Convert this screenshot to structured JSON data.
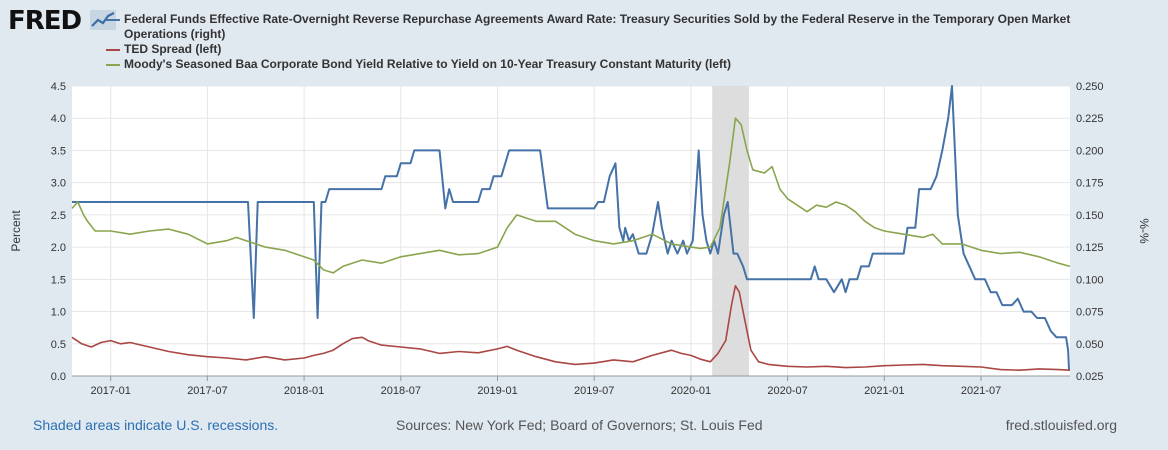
{
  "header": {
    "logo_text": "FRED"
  },
  "footer": {
    "recession_note": "Shaded areas indicate U.S. recessions.",
    "sources": "Sources: New York Fed; Board of Governors; St. Louis Fed",
    "site": "fred.stlouisfed.org"
  },
  "colors": {
    "series_blue": "#4572a7",
    "series_red": "#aa4643",
    "series_green": "#89a54e",
    "recession": "#d9d9d9",
    "grid": "#e6e6e6",
    "frame": "#e1e9f0"
  },
  "chart_data": {
    "type": "line",
    "title": "",
    "ylabel_left": "Percent",
    "ylabel_right": "%-%",
    "ylim_left": [
      0.0,
      4.5
    ],
    "ylim_right": [
      0.025,
      0.25
    ],
    "yticks_left": [
      "0.0",
      "0.5",
      "1.0",
      "1.5",
      "2.0",
      "2.5",
      "3.0",
      "3.5",
      "4.0",
      "4.5"
    ],
    "yticks_right": [
      "0.025",
      "0.050",
      "0.075",
      "0.100",
      "0.125",
      "0.150",
      "0.175",
      "0.200",
      "0.225",
      "0.250"
    ],
    "x_range_years": [
      2016.8,
      2021.96
    ],
    "xticks": [
      {
        "label": "2017-01",
        "t": 2017.0
      },
      {
        "label": "2017-07",
        "t": 2017.5
      },
      {
        "label": "2018-01",
        "t": 2018.0
      },
      {
        "label": "2018-07",
        "t": 2018.5
      },
      {
        "label": "2019-01",
        "t": 2019.0
      },
      {
        "label": "2019-07",
        "t": 2019.5
      },
      {
        "label": "2020-01",
        "t": 2020.0
      },
      {
        "label": "2020-07",
        "t": 2020.5
      },
      {
        "label": "2021-01",
        "t": 2021.0
      },
      {
        "label": "2021-07",
        "t": 2021.5
      }
    ],
    "recessions": [
      [
        2020.11,
        2020.3
      ]
    ],
    "series": [
      {
        "name": "Federal Funds Effective Rate-Overnight Reverse Repurchase Agreements Award Rate: Treasury Securities Sold by the Federal Reserve in the Temporary Open Market Operations (right)",
        "axis": "right",
        "color": "#4572a7",
        "points": [
          [
            2016.8,
            0.16
          ],
          [
            2017.71,
            0.16
          ],
          [
            2017.74,
            0.07
          ],
          [
            2017.76,
            0.16
          ],
          [
            2018.05,
            0.16
          ],
          [
            2018.07,
            0.07
          ],
          [
            2018.09,
            0.16
          ],
          [
            2018.11,
            0.16
          ],
          [
            2018.13,
            0.17
          ],
          [
            2018.4,
            0.17
          ],
          [
            2018.42,
            0.18
          ],
          [
            2018.48,
            0.18
          ],
          [
            2018.5,
            0.19
          ],
          [
            2018.55,
            0.19
          ],
          [
            2018.57,
            0.2
          ],
          [
            2018.7,
            0.2
          ],
          [
            2018.73,
            0.155
          ],
          [
            2018.75,
            0.17
          ],
          [
            2018.77,
            0.16
          ],
          [
            2018.9,
            0.16
          ],
          [
            2018.92,
            0.17
          ],
          [
            2018.96,
            0.17
          ],
          [
            2018.98,
            0.18
          ],
          [
            2019.02,
            0.18
          ],
          [
            2019.06,
            0.2
          ],
          [
            2019.22,
            0.2
          ],
          [
            2019.26,
            0.155
          ],
          [
            2019.5,
            0.155
          ],
          [
            2019.52,
            0.16
          ],
          [
            2019.55,
            0.16
          ],
          [
            2019.58,
            0.18
          ],
          [
            2019.61,
            0.19
          ],
          [
            2019.63,
            0.14
          ],
          [
            2019.65,
            0.13
          ],
          [
            2019.66,
            0.14
          ],
          [
            2019.68,
            0.13
          ],
          [
            2019.7,
            0.135
          ],
          [
            2019.73,
            0.12
          ],
          [
            2019.77,
            0.12
          ],
          [
            2019.8,
            0.135
          ],
          [
            2019.83,
            0.16
          ],
          [
            2019.85,
            0.14
          ],
          [
            2019.88,
            0.12
          ],
          [
            2019.9,
            0.13
          ],
          [
            2019.93,
            0.12
          ],
          [
            2019.96,
            0.13
          ],
          [
            2019.98,
            0.12
          ],
          [
            2020.01,
            0.13
          ],
          [
            2020.04,
            0.2
          ],
          [
            2020.06,
            0.15
          ],
          [
            2020.08,
            0.13
          ],
          [
            2020.1,
            0.12
          ],
          [
            2020.12,
            0.13
          ],
          [
            2020.14,
            0.12
          ],
          [
            2020.17,
            0.15
          ],
          [
            2020.19,
            0.16
          ],
          [
            2020.22,
            0.12
          ],
          [
            2020.24,
            0.12
          ],
          [
            2020.27,
            0.11
          ],
          [
            2020.29,
            0.1
          ],
          [
            2020.62,
            0.1
          ],
          [
            2020.64,
            0.11
          ],
          [
            2020.66,
            0.1
          ],
          [
            2020.7,
            0.1
          ],
          [
            2020.74,
            0.09
          ],
          [
            2020.78,
            0.1
          ],
          [
            2020.8,
            0.09
          ],
          [
            2020.82,
            0.1
          ],
          [
            2020.86,
            0.1
          ],
          [
            2020.88,
            0.11
          ],
          [
            2020.92,
            0.11
          ],
          [
            2020.94,
            0.12
          ],
          [
            2021.1,
            0.12
          ],
          [
            2021.12,
            0.14
          ],
          [
            2021.16,
            0.14
          ],
          [
            2021.18,
            0.17
          ],
          [
            2021.24,
            0.17
          ],
          [
            2021.27,
            0.18
          ],
          [
            2021.3,
            0.2
          ],
          [
            2021.33,
            0.225
          ],
          [
            2021.35,
            0.25
          ],
          [
            2021.38,
            0.15
          ],
          [
            2021.41,
            0.12
          ],
          [
            2021.44,
            0.11
          ],
          [
            2021.47,
            0.1
          ],
          [
            2021.52,
            0.1
          ],
          [
            2021.55,
            0.09
          ],
          [
            2021.58,
            0.09
          ],
          [
            2021.61,
            0.08
          ],
          [
            2021.66,
            0.08
          ],
          [
            2021.69,
            0.085
          ],
          [
            2021.72,
            0.075
          ],
          [
            2021.76,
            0.075
          ],
          [
            2021.79,
            0.07
          ],
          [
            2021.83,
            0.07
          ],
          [
            2021.86,
            0.06
          ],
          [
            2021.89,
            0.055
          ],
          [
            2021.94,
            0.055
          ],
          [
            2021.95,
            0.045
          ],
          [
            2021.955,
            0.03
          ],
          [
            2021.96,
            0.03
          ]
        ]
      },
      {
        "name": "TED Spread (left)",
        "axis": "left",
        "color": "#aa4643",
        "points": [
          [
            2016.8,
            0.6
          ],
          [
            2016.85,
            0.5
          ],
          [
            2016.9,
            0.45
          ],
          [
            2016.95,
            0.52
          ],
          [
            2017.0,
            0.55
          ],
          [
            2017.05,
            0.5
          ],
          [
            2017.1,
            0.52
          ],
          [
            2017.2,
            0.45
          ],
          [
            2017.3,
            0.38
          ],
          [
            2017.4,
            0.33
          ],
          [
            2017.5,
            0.3
          ],
          [
            2017.6,
            0.28
          ],
          [
            2017.7,
            0.25
          ],
          [
            2017.8,
            0.3
          ],
          [
            2017.9,
            0.25
          ],
          [
            2018.0,
            0.28
          ],
          [
            2018.05,
            0.32
          ],
          [
            2018.1,
            0.35
          ],
          [
            2018.15,
            0.4
          ],
          [
            2018.2,
            0.5
          ],
          [
            2018.25,
            0.58
          ],
          [
            2018.3,
            0.6
          ],
          [
            2018.33,
            0.55
          ],
          [
            2018.4,
            0.48
          ],
          [
            2018.5,
            0.45
          ],
          [
            2018.6,
            0.42
          ],
          [
            2018.7,
            0.35
          ],
          [
            2018.8,
            0.38
          ],
          [
            2018.9,
            0.36
          ],
          [
            2019.0,
            0.42
          ],
          [
            2019.05,
            0.46
          ],
          [
            2019.1,
            0.4
          ],
          [
            2019.2,
            0.3
          ],
          [
            2019.3,
            0.22
          ],
          [
            2019.4,
            0.18
          ],
          [
            2019.5,
            0.2
          ],
          [
            2019.6,
            0.25
          ],
          [
            2019.7,
            0.22
          ],
          [
            2019.8,
            0.32
          ],
          [
            2019.9,
            0.4
          ],
          [
            2019.95,
            0.35
          ],
          [
            2020.0,
            0.32
          ],
          [
            2020.05,
            0.26
          ],
          [
            2020.1,
            0.22
          ],
          [
            2020.14,
            0.35
          ],
          [
            2020.18,
            0.55
          ],
          [
            2020.21,
            1.1
          ],
          [
            2020.23,
            1.4
          ],
          [
            2020.25,
            1.3
          ],
          [
            2020.27,
            1.0
          ],
          [
            2020.29,
            0.7
          ],
          [
            2020.31,
            0.4
          ],
          [
            2020.35,
            0.22
          ],
          [
            2020.4,
            0.18
          ],
          [
            2020.5,
            0.15
          ],
          [
            2020.6,
            0.14
          ],
          [
            2020.7,
            0.15
          ],
          [
            2020.8,
            0.13
          ],
          [
            2020.9,
            0.14
          ],
          [
            2021.0,
            0.16
          ],
          [
            2021.1,
            0.17
          ],
          [
            2021.2,
            0.18
          ],
          [
            2021.3,
            0.16
          ],
          [
            2021.4,
            0.15
          ],
          [
            2021.5,
            0.14
          ],
          [
            2021.6,
            0.1
          ],
          [
            2021.7,
            0.09
          ],
          [
            2021.8,
            0.11
          ],
          [
            2021.9,
            0.1
          ],
          [
            2021.96,
            0.09
          ]
        ]
      },
      {
        "name": "Moody's Seasoned Baa Corporate Bond Yield Relative to Yield on 10-Year Treasury Constant Maturity (left)",
        "axis": "left",
        "color": "#89a54e",
        "points": [
          [
            2016.8,
            2.6
          ],
          [
            2016.83,
            2.7
          ],
          [
            2016.86,
            2.5
          ],
          [
            2016.88,
            2.4
          ],
          [
            2016.92,
            2.25
          ],
          [
            2017.0,
            2.25
          ],
          [
            2017.1,
            2.2
          ],
          [
            2017.2,
            2.25
          ],
          [
            2017.3,
            2.28
          ],
          [
            2017.4,
            2.2
          ],
          [
            2017.5,
            2.05
          ],
          [
            2017.6,
            2.1
          ],
          [
            2017.65,
            2.15
          ],
          [
            2017.7,
            2.1
          ],
          [
            2017.8,
            2.0
          ],
          [
            2017.9,
            1.95
          ],
          [
            2018.0,
            1.85
          ],
          [
            2018.05,
            1.8
          ],
          [
            2018.1,
            1.65
          ],
          [
            2018.15,
            1.6
          ],
          [
            2018.2,
            1.7
          ],
          [
            2018.3,
            1.8
          ],
          [
            2018.4,
            1.75
          ],
          [
            2018.5,
            1.85
          ],
          [
            2018.6,
            1.9
          ],
          [
            2018.7,
            1.95
          ],
          [
            2018.8,
            1.88
          ],
          [
            2018.9,
            1.9
          ],
          [
            2019.0,
            2.0
          ],
          [
            2019.05,
            2.3
          ],
          [
            2019.1,
            2.5
          ],
          [
            2019.15,
            2.45
          ],
          [
            2019.2,
            2.4
          ],
          [
            2019.3,
            2.4
          ],
          [
            2019.4,
            2.2
          ],
          [
            2019.5,
            2.1
          ],
          [
            2019.6,
            2.05
          ],
          [
            2019.7,
            2.1
          ],
          [
            2019.8,
            2.2
          ],
          [
            2019.9,
            2.05
          ],
          [
            2020.0,
            2.0
          ],
          [
            2020.05,
            1.98
          ],
          [
            2020.1,
            2.0
          ],
          [
            2020.15,
            2.3
          ],
          [
            2020.2,
            3.3
          ],
          [
            2020.23,
            4.0
          ],
          [
            2020.26,
            3.9
          ],
          [
            2020.29,
            3.5
          ],
          [
            2020.32,
            3.2
          ],
          [
            2020.38,
            3.15
          ],
          [
            2020.42,
            3.25
          ],
          [
            2020.46,
            2.9
          ],
          [
            2020.5,
            2.75
          ],
          [
            2020.55,
            2.65
          ],
          [
            2020.6,
            2.55
          ],
          [
            2020.65,
            2.65
          ],
          [
            2020.7,
            2.62
          ],
          [
            2020.75,
            2.7
          ],
          [
            2020.8,
            2.65
          ],
          [
            2020.85,
            2.55
          ],
          [
            2020.9,
            2.4
          ],
          [
            2020.95,
            2.3
          ],
          [
            2021.0,
            2.25
          ],
          [
            2021.1,
            2.2
          ],
          [
            2021.2,
            2.15
          ],
          [
            2021.25,
            2.2
          ],
          [
            2021.3,
            2.05
          ],
          [
            2021.4,
            2.05
          ],
          [
            2021.5,
            1.95
          ],
          [
            2021.6,
            1.9
          ],
          [
            2021.7,
            1.92
          ],
          [
            2021.8,
            1.85
          ],
          [
            2021.9,
            1.75
          ],
          [
            2021.96,
            1.7
          ]
        ]
      }
    ]
  }
}
